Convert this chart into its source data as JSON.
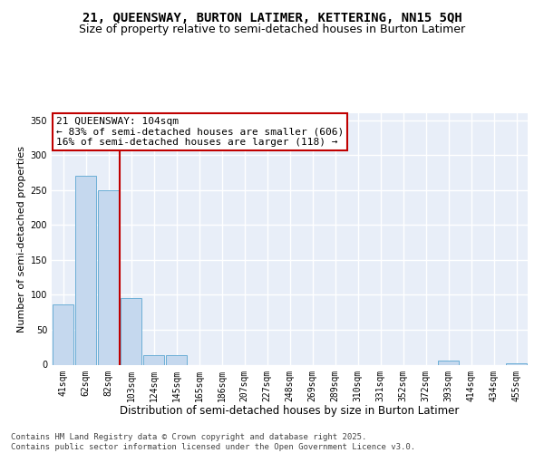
{
  "title1": "21, QUEENSWAY, BURTON LATIMER, KETTERING, NN15 5QH",
  "title2": "Size of property relative to semi-detached houses in Burton Latimer",
  "xlabel": "Distribution of semi-detached houses by size in Burton Latimer",
  "ylabel": "Number of semi-detached properties",
  "categories": [
    "41sqm",
    "62sqm",
    "82sqm",
    "103sqm",
    "124sqm",
    "145sqm",
    "165sqm",
    "186sqm",
    "207sqm",
    "227sqm",
    "248sqm",
    "269sqm",
    "289sqm",
    "310sqm",
    "331sqm",
    "352sqm",
    "372sqm",
    "393sqm",
    "414sqm",
    "434sqm",
    "455sqm"
  ],
  "values": [
    86,
    270,
    250,
    95,
    14,
    14,
    0,
    0,
    0,
    0,
    0,
    0,
    0,
    0,
    0,
    0,
    0,
    6,
    0,
    0,
    2
  ],
  "bar_color": "#c5d8ee",
  "bar_edge_color": "#6baed6",
  "property_line_color": "#c00000",
  "annotation_text": "21 QUEENSWAY: 104sqm\n← 83% of semi-detached houses are smaller (606)\n16% of semi-detached houses are larger (118) →",
  "annotation_box_color": "#c00000",
  "footer_text": "Contains HM Land Registry data © Crown copyright and database right 2025.\nContains public sector information licensed under the Open Government Licence v3.0.",
  "ylim": [
    0,
    360
  ],
  "yticks": [
    0,
    50,
    100,
    150,
    200,
    250,
    300,
    350
  ],
  "background_color": "#e8eef8",
  "grid_color": "#ffffff",
  "title1_fontsize": 10,
  "title2_fontsize": 9,
  "xlabel_fontsize": 8.5,
  "ylabel_fontsize": 8,
  "tick_fontsize": 7,
  "annotation_fontsize": 8,
  "footer_fontsize": 6.5
}
